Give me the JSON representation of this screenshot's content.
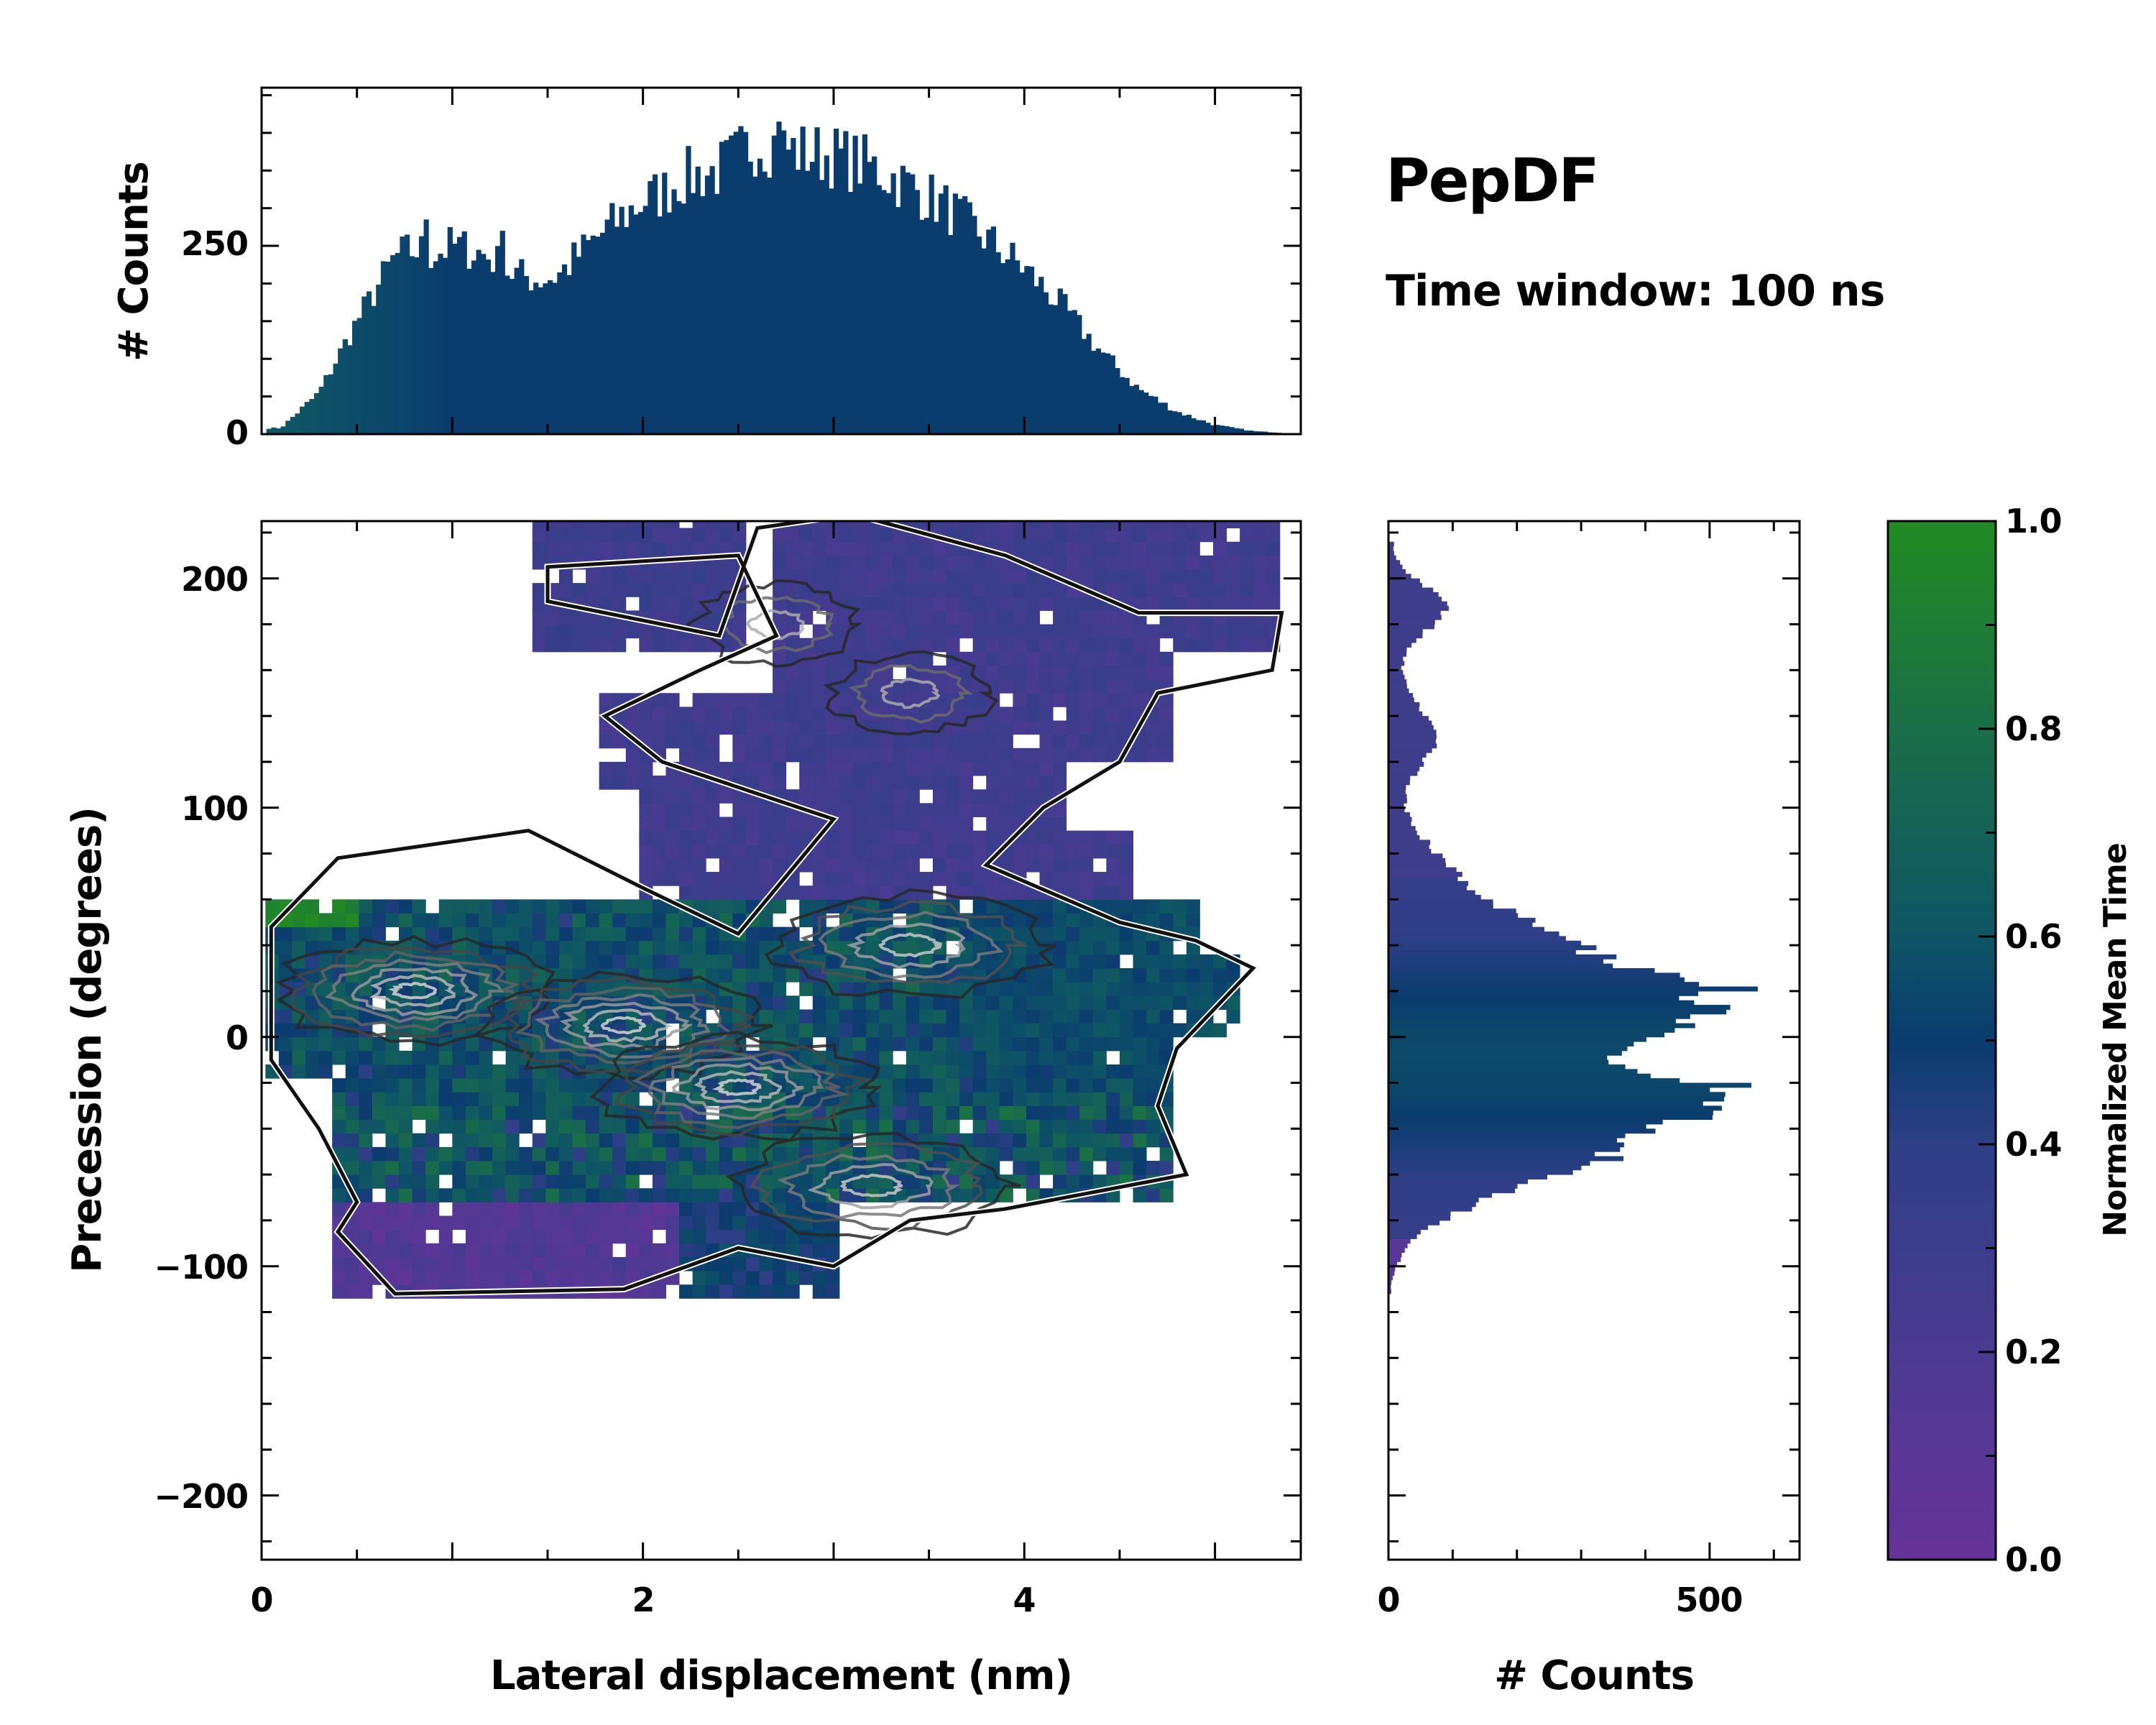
{
  "title": "PepDF",
  "subtitle": "Time window: 100 ns",
  "colors": {
    "low": "#663399",
    "mid": "#0a3c6e",
    "high": "#228b22",
    "frame": "#000000"
  },
  "chart_data": [
    {
      "id": "joint",
      "type": "heatmap",
      "title": "",
      "xlabel": "Lateral displacement (nm)",
      "ylabel": "Precession (degrees)",
      "xlim": [
        0,
        5.45
      ],
      "ylim": [
        -228,
        225
      ],
      "xticks": [
        0,
        2,
        4
      ],
      "xtick_labels": [
        "0",
        "2",
        "4"
      ],
      "yticks": [
        200,
        100,
        0,
        -100,
        -200
      ],
      "ytick_labels": [
        "200",
        "100",
        "0",
        "−100",
        "−200"
      ],
      "color_metric": "Normalized Mean Time",
      "density_peaks": [
        {
          "x": 0.8,
          "y": 20,
          "level": "high"
        },
        {
          "x": 1.9,
          "y": 5,
          "level": "high"
        },
        {
          "x": 2.5,
          "y": -22,
          "level": "high"
        },
        {
          "x": 3.2,
          "y": -65,
          "level": "medium"
        },
        {
          "x": 3.4,
          "y": 40,
          "level": "medium"
        },
        {
          "x": 3.4,
          "y": 150,
          "level": "low"
        },
        {
          "x": 2.7,
          "y": 180,
          "level": "low"
        }
      ],
      "regions": [
        {
          "name": "upper-purple",
          "x_range": [
            1.4,
            5.4
          ],
          "y_range": [
            60,
            225
          ],
          "mean_time": 0.28
        },
        {
          "name": "upper-left-patch",
          "x_range": [
            1.45,
            2.55
          ],
          "y_range": [
            170,
            215
          ],
          "mean_time": 0.3
        },
        {
          "name": "main-band",
          "x_range": [
            0.05,
            4.9
          ],
          "y_range": [
            -70,
            60
          ],
          "mean_time": 0.55
        },
        {
          "name": "left-green",
          "x_range": [
            0.05,
            0.5
          ],
          "y_range": [
            45,
            75
          ],
          "mean_time": 0.95
        },
        {
          "name": "right-teal",
          "x_range": [
            3.7,
            5.2
          ],
          "y_range": [
            -25,
            40
          ],
          "mean_time": 0.55
        },
        {
          "name": "lower-purple",
          "x_range": [
            0.3,
            3.0
          ],
          "y_range": [
            -115,
            -70
          ],
          "mean_time": 0.1
        }
      ]
    },
    {
      "id": "top-marginal",
      "type": "bar",
      "title": "",
      "xlabel": "",
      "ylabel": "# Counts",
      "xlim": [
        0,
        5.45
      ],
      "ylim": [
        0,
        460
      ],
      "yticks": [
        0,
        250
      ],
      "ytick_labels": [
        "0",
        "250"
      ],
      "bin_width": 0.025,
      "x": [
        0.1,
        0.3,
        0.5,
        0.7,
        0.8,
        0.9,
        1.0,
        1.1,
        1.2,
        1.3,
        1.45,
        1.55,
        1.65,
        1.8,
        1.9,
        2.0,
        2.1,
        2.2,
        2.3,
        2.4,
        2.5,
        2.6,
        2.7,
        2.8,
        3.0,
        3.2,
        3.4,
        3.6,
        3.8,
        4.0,
        4.2,
        4.4,
        4.6,
        4.8,
        5.0,
        5.2,
        5.4
      ],
      "values": [
        8,
        55,
        150,
        235,
        245,
        240,
        250,
        245,
        235,
        215,
        205,
        210,
        235,
        270,
        290,
        310,
        320,
        340,
        345,
        350,
        370,
        390,
        385,
        375,
        370,
        355,
        330,
        300,
        260,
        220,
        170,
        110,
        60,
        30,
        12,
        4,
        1
      ],
      "peak_counts": [
        {
          "x": 0.85,
          "value": 285
        },
        {
          "x": 2.7,
          "value": 415
        },
        {
          "x": 1.25,
          "value": 270
        }
      ]
    },
    {
      "id": "right-marginal",
      "type": "bar",
      "orientation": "horizontal",
      "title": "",
      "xlabel": "# Counts",
      "ylabel": "",
      "xlim": [
        0,
        640
      ],
      "ylim": [
        -228,
        225
      ],
      "xticks": [
        0,
        500
      ],
      "xtick_labels": [
        "0",
        "500"
      ],
      "bin_width": 2,
      "y": [
        212,
        205,
        195,
        188,
        180,
        170,
        160,
        150,
        140,
        130,
        120,
        110,
        100,
        90,
        80,
        70,
        60,
        50,
        40,
        30,
        20,
        10,
        0,
        -10,
        -20,
        -30,
        -40,
        -50,
        -60,
        -70,
        -80,
        -90,
        -100,
        -108
      ],
      "values": [
        8,
        20,
        65,
        90,
        70,
        30,
        20,
        35,
        60,
        75,
        55,
        30,
        25,
        45,
        75,
        110,
        150,
        220,
        290,
        380,
        500,
        480,
        390,
        330,
        460,
        500,
        430,
        360,
        270,
        160,
        80,
        30,
        12,
        4
      ]
    },
    {
      "id": "colorbar",
      "type": "heatmap",
      "title": "",
      "label": "Normalized Mean Time",
      "range": [
        0,
        1
      ],
      "ticks": [
        0.0,
        0.2,
        0.4,
        0.6,
        0.8,
        1.0
      ],
      "tick_labels": [
        "0.0",
        "0.2",
        "0.4",
        "0.6",
        "0.8",
        "1.0"
      ]
    }
  ]
}
